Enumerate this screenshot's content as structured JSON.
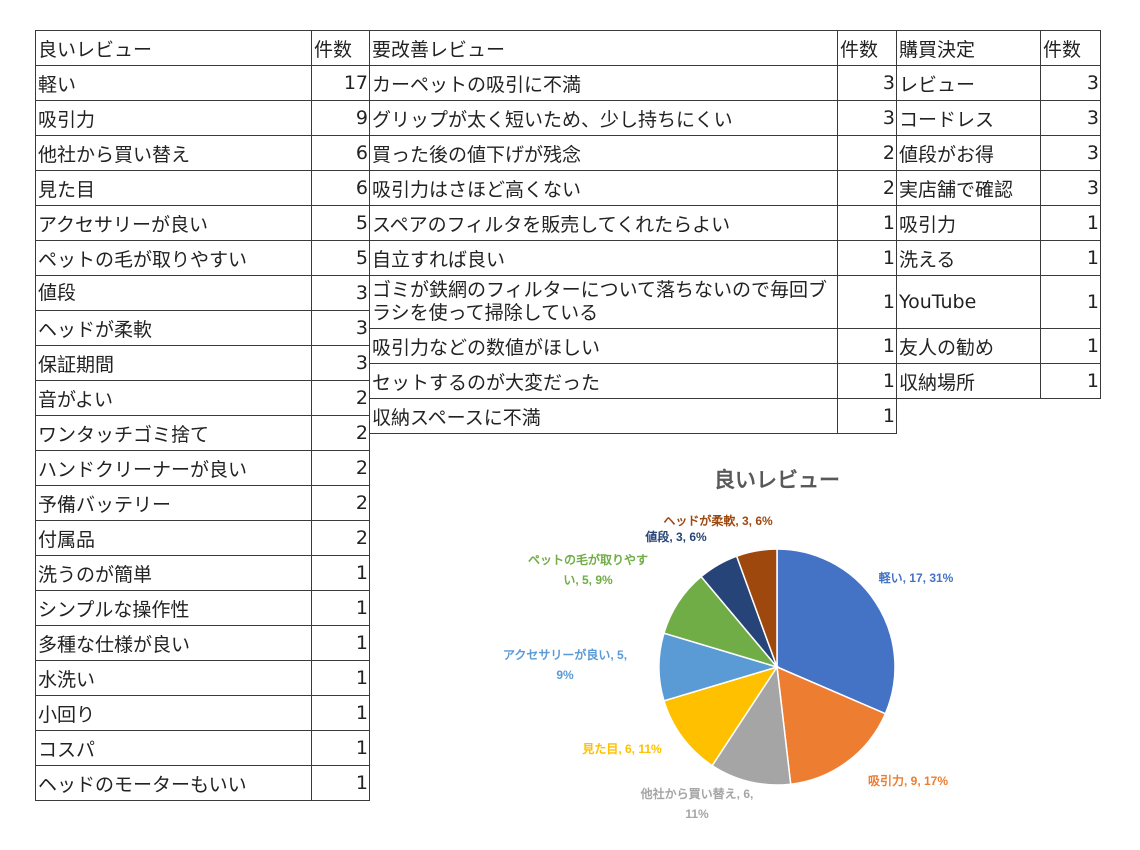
{
  "tables": {
    "good": {
      "headers": [
        "良いレビュー",
        "件数"
      ],
      "rows": [
        [
          "軽い",
          "17"
        ],
        [
          "吸引力",
          "9"
        ],
        [
          "他社から買い替え",
          "6"
        ],
        [
          "見た目",
          "6"
        ],
        [
          "アクセサリーが良い",
          "5"
        ],
        [
          "ペットの毛が取りやすい",
          "5"
        ],
        [
          "値段",
          "3"
        ],
        [
          "ヘッドが柔軟",
          "3"
        ],
        [
          "保証期間",
          "3"
        ],
        [
          "音がよい",
          "2"
        ],
        [
          "ワンタッチゴミ捨て",
          "2"
        ],
        [
          "ハンドクリーナーが良い",
          "2"
        ],
        [
          "予備バッテリー",
          "2"
        ],
        [
          "付属品",
          "2"
        ],
        [
          "洗うのが簡単",
          "1"
        ],
        [
          "シンプルな操作性",
          "1"
        ],
        [
          "多種な仕様が良い",
          "1"
        ],
        [
          "水洗い",
          "1"
        ],
        [
          "小回り",
          "1"
        ],
        [
          "コスパ",
          "1"
        ],
        [
          "ヘッドのモーターもいい",
          "1"
        ]
      ]
    },
    "improve": {
      "headers": [
        "要改善レビュー",
        "件数"
      ],
      "rows": [
        [
          "カーペットの吸引に不満",
          "3"
        ],
        [
          "グリップが太く短いため、少し持ちにくい",
          "3"
        ],
        [
          "買った後の値下げが残念",
          "2"
        ],
        [
          "吸引力はさほど高くない",
          "2"
        ],
        [
          "スペアのフィルタを販売してくれたらよい",
          "1"
        ],
        [
          "自立すれば良い",
          "1"
        ],
        [
          "ゴミが鉄網のフィルターについて落ちないので毎回ブラシを使って掃除している",
          "1"
        ],
        [
          "吸引力などの数値がほしい",
          "1"
        ],
        [
          "セットするのが大変だった",
          "1"
        ],
        [
          "収納スペースに不満",
          "1"
        ]
      ]
    },
    "purchase": {
      "headers": [
        "購買決定",
        "件数"
      ],
      "rows": [
        [
          "レビュー",
          "3"
        ],
        [
          "コードレス",
          "3"
        ],
        [
          "値段がお得",
          "3"
        ],
        [
          "実店舗で確認",
          "3"
        ],
        [
          "吸引力",
          "1"
        ],
        [
          "洗える",
          "1"
        ],
        [
          "YouTube",
          "1"
        ],
        [
          "友人の勧め",
          "1"
        ],
        [
          "収納場所",
          "1"
        ]
      ]
    }
  },
  "chart_data": {
    "type": "pie",
    "title": "良いレビュー",
    "categories": [
      "軽い",
      "吸引力",
      "他社から買い替え",
      "見た目",
      "アクセサリーが良い",
      "ペットの毛が取りやすい",
      "値段",
      "ヘッドが柔軟"
    ],
    "values": [
      17,
      9,
      6,
      6,
      5,
      5,
      3,
      3
    ],
    "percent_labels": [
      "31%",
      "17%",
      "11%",
      "11%",
      "9%",
      "9%",
      "6%",
      "6%"
    ],
    "data_labels": [
      [
        "軽い, 17, 31%"
      ],
      [
        "吸引力, 9, 17%"
      ],
      [
        "他社から買い替え, 6,",
        "11%"
      ],
      [
        "見た目, 6, 11%"
      ],
      [
        "アクセサリーが良い, 5,",
        "9%"
      ],
      [
        "ペットの毛が取りやす",
        "い, 5, 9%"
      ],
      [
        "値段, 3, 6%"
      ],
      [
        "ヘッドが柔軟, 3, 6%"
      ]
    ],
    "colors": [
      "#4472C4",
      "#ED7D31",
      "#A5A5A5",
      "#FFC000",
      "#5B9BD5",
      "#70AD47",
      "#264478",
      "#9E480E"
    ],
    "start_angle": "12 o'clock",
    "direction": "clockwise",
    "legend": "none"
  }
}
